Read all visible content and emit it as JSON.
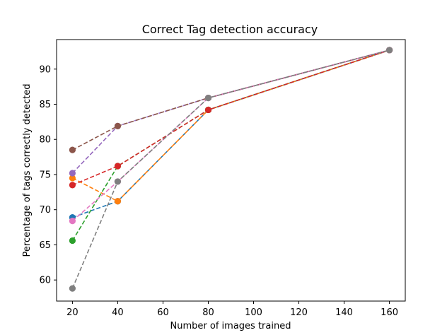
{
  "chart_data": {
    "type": "line",
    "title": "Correct Tag detection accuracy",
    "xlabel": "Number of images trained",
    "ylabel": "Percentage of tags correctly detected",
    "x": [
      20,
      40,
      80,
      160
    ],
    "xlim": [
      13,
      167
    ],
    "ylim": [
      57.0,
      94.2
    ],
    "xticks": [
      20,
      40,
      60,
      80,
      100,
      120,
      140,
      160
    ],
    "yticks": [
      60,
      65,
      70,
      75,
      80,
      85,
      90
    ],
    "grid": false,
    "legend": false,
    "line_style": "dashed",
    "series": [
      {
        "color": "#1f77b4",
        "values": [
          68.9,
          71.2,
          84.2,
          92.7
        ]
      },
      {
        "color": "#ff7f0e",
        "values": [
          74.5,
          71.2,
          84.2,
          92.7
        ]
      },
      {
        "color": "#2ca02c",
        "values": [
          65.6,
          76.2,
          84.2,
          92.7
        ]
      },
      {
        "color": "#d62728",
        "values": [
          73.5,
          76.2,
          84.2,
          92.7
        ]
      },
      {
        "color": "#9467bd",
        "values": [
          75.2,
          81.9,
          85.9,
          92.7
        ]
      },
      {
        "color": "#8c564b",
        "values": [
          78.5,
          81.9,
          85.9,
          92.7
        ]
      },
      {
        "color": "#e377c2",
        "values": [
          68.4,
          74.0,
          85.9,
          92.7
        ]
      },
      {
        "color": "#7f7f7f",
        "values": [
          58.8,
          74.0,
          85.9,
          92.7
        ]
      }
    ]
  }
}
